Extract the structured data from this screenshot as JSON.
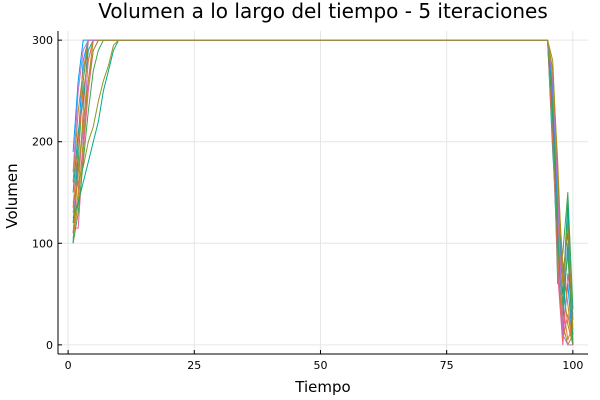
{
  "chart_data": {
    "type": "line",
    "title": "Volumen a lo largo del tiempo - 5 iteraciones",
    "xlabel": "Tiempo",
    "ylabel": "Volumen",
    "xlim": [
      -2,
      103
    ],
    "ylim": [
      -9,
      309
    ],
    "xticks": [
      0,
      25,
      50,
      75,
      100
    ],
    "yticks": [
      0,
      100,
      200,
      300
    ],
    "grid": true,
    "legend": "none",
    "palette": [
      "#009AFA",
      "#E36F47",
      "#3EA44E",
      "#C371D2",
      "#AC8E18",
      "#00AAAE",
      "#ED5E93",
      "#C68225",
      "#00A98D",
      "#8E971E"
    ],
    "series": [
      {
        "x": [
          1,
          2,
          3,
          4,
          5,
          6,
          95,
          96,
          97,
          98,
          99,
          100
        ],
        "y": [
          100,
          200,
          280,
          300,
          300,
          300,
          300,
          200,
          80,
          10,
          60,
          0
        ]
      },
      {
        "x": [
          1,
          2,
          3,
          4,
          5,
          6,
          95,
          96,
          97,
          98,
          99,
          100
        ],
        "y": [
          110,
          150,
          230,
          300,
          300,
          300,
          300,
          250,
          120,
          40,
          5,
          20
        ]
      },
      {
        "x": [
          1,
          2,
          3,
          4,
          5,
          6,
          95,
          96,
          97,
          98,
          99,
          100
        ],
        "y": [
          120,
          180,
          260,
          300,
          300,
          300,
          300,
          230,
          60,
          90,
          150,
          35
        ]
      },
      {
        "x": [
          1,
          2,
          3,
          4,
          5,
          6,
          95,
          96,
          97,
          98,
          99,
          100
        ],
        "y": [
          130,
          170,
          210,
          280,
          300,
          300,
          300,
          210,
          100,
          30,
          130,
          5
        ]
      },
      {
        "x": [
          1,
          2,
          3,
          4,
          5,
          6,
          95,
          96,
          97,
          98,
          99,
          100
        ],
        "y": [
          105,
          140,
          200,
          260,
          300,
          300,
          300,
          270,
          140,
          60,
          20,
          0
        ]
      },
      {
        "x": [
          1,
          2,
          3,
          4,
          5,
          6,
          7,
          95,
          96,
          97,
          98,
          99,
          100
        ],
        "y": [
          150,
          210,
          240,
          290,
          300,
          300,
          300,
          300,
          190,
          110,
          20,
          100,
          10
        ]
      },
      {
        "x": [
          1,
          2,
          3,
          4,
          5,
          6,
          95,
          96,
          97,
          98,
          99,
          100
        ],
        "y": [
          115,
          115,
          190,
          250,
          290,
          300,
          300,
          240,
          70,
          0,
          70,
          30
        ]
      },
      {
        "x": [
          1,
          2,
          3,
          4,
          5,
          6,
          95,
          96,
          97,
          98,
          99,
          100
        ],
        "y": [
          160,
          230,
          270,
          300,
          300,
          300,
          300,
          260,
          160,
          80,
          40,
          0
        ]
      },
      {
        "x": [
          1,
          2,
          3,
          4,
          5,
          6,
          7,
          8,
          9,
          10,
          11,
          95,
          96,
          97,
          98,
          99,
          100
        ],
        "y": [
          125,
          140,
          160,
          180,
          200,
          220,
          250,
          270,
          290,
          300,
          300,
          300,
          220,
          90,
          50,
          140,
          0
        ]
      },
      {
        "x": [
          1,
          2,
          3,
          4,
          5,
          6,
          7,
          8,
          9,
          10,
          95,
          96,
          97,
          98,
          99,
          100
        ],
        "y": [
          140,
          160,
          175,
          200,
          215,
          240,
          260,
          275,
          295,
          300,
          300,
          280,
          170,
          20,
          0,
          10
        ]
      },
      {
        "x": [
          1,
          2,
          3,
          4,
          5,
          6,
          95,
          96,
          97,
          98,
          99,
          100
        ],
        "y": [
          190,
          260,
          300,
          300,
          300,
          300,
          300,
          250,
          130,
          70,
          110,
          25
        ]
      },
      {
        "x": [
          1,
          2,
          3,
          4,
          5,
          6,
          95,
          96,
          97,
          98,
          99,
          100
        ],
        "y": [
          135,
          200,
          250,
          280,
          300,
          300,
          300,
          200,
          90,
          5,
          30,
          0
        ]
      },
      {
        "x": [
          1,
          2,
          3,
          4,
          5,
          6,
          7,
          8,
          95,
          96,
          97,
          98,
          99,
          100
        ],
        "y": [
          100,
          130,
          180,
          230,
          270,
          290,
          300,
          300,
          300,
          230,
          100,
          40,
          90,
          0
        ]
      },
      {
        "x": [
          1,
          2,
          3,
          4,
          5,
          6,
          95,
          96,
          97,
          98,
          99,
          100
        ],
        "y": [
          170,
          250,
          290,
          300,
          300,
          300,
          300,
          260,
          150,
          10,
          0,
          0
        ]
      },
      {
        "x": [
          1,
          2,
          3,
          4,
          5,
          6,
          7,
          95,
          96,
          97,
          98,
          99,
          100
        ],
        "y": [
          110,
          170,
          220,
          260,
          290,
          300,
          300,
          300,
          270,
          180,
          60,
          120,
          15
        ]
      }
    ]
  }
}
